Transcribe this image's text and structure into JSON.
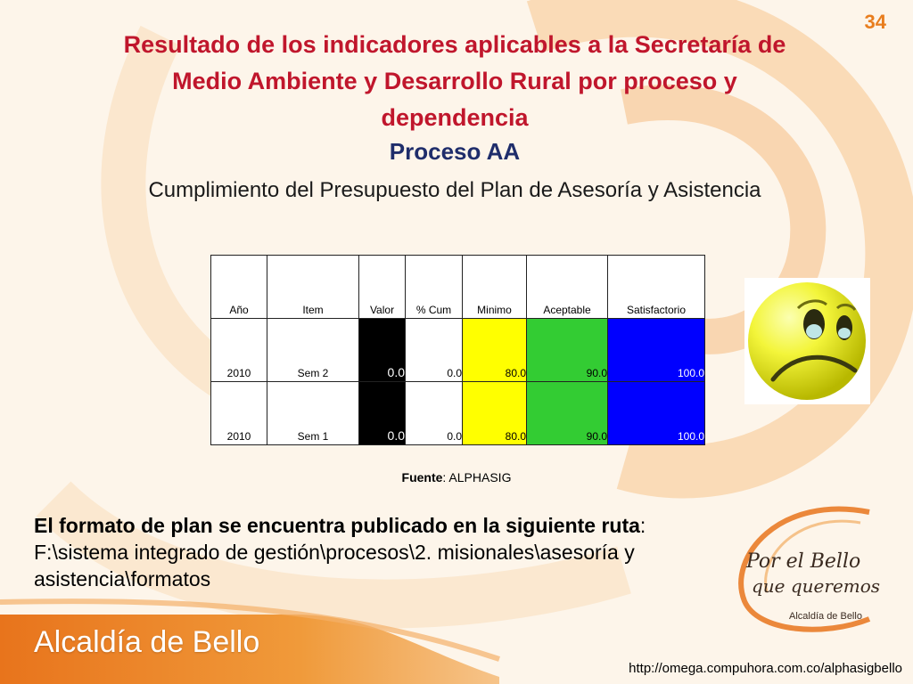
{
  "slide": {
    "page_number": "34",
    "title_line1": "Resultado de los indicadores aplicables a la Secretaría de",
    "title_line2": "Medio Ambiente y Desarrollo Rural  por proceso y",
    "title_line3": "dependencia",
    "process": "Proceso AA",
    "indicator": "Cumplimiento del Presupuesto del Plan de Asesoría y Asistencia"
  },
  "table": {
    "headers": [
      "Año",
      "Item",
      "Valor",
      "% Cum",
      "Minimo",
      "Aceptable",
      "Satisfactorio"
    ],
    "rows": [
      [
        "2010",
        "Sem 2",
        "0.0",
        "0.0",
        "80.0",
        "90.0",
        "100.0"
      ],
      [
        "2010",
        "Sem 1",
        "0.0",
        "0.0",
        "80.0",
        "90.0",
        "100.0"
      ]
    ]
  },
  "source": {
    "label": "Fuente",
    "value": ": ALPHASIG"
  },
  "note": {
    "bold_part": "El formato de plan se encuentra publicado en la siguiente ruta",
    "rest": ": F:\\sistema integrado de gestión\\procesos\\2. misionales\\asesoría y asistencia\\formatos"
  },
  "logo": {
    "line1": "Por el Bello",
    "line2": "que queremos",
    "line3": "Alcaldía de Bello"
  },
  "footer": {
    "brand": "Alcaldía de Bello",
    "url": "http://omega.compuhora.com.co/alphasigbello"
  },
  "colors": {
    "title": "#c0162c",
    "process": "#1f2d6b",
    "accent_orange": "#e87d1e"
  },
  "icons": {
    "status": "sad-face-icon"
  }
}
